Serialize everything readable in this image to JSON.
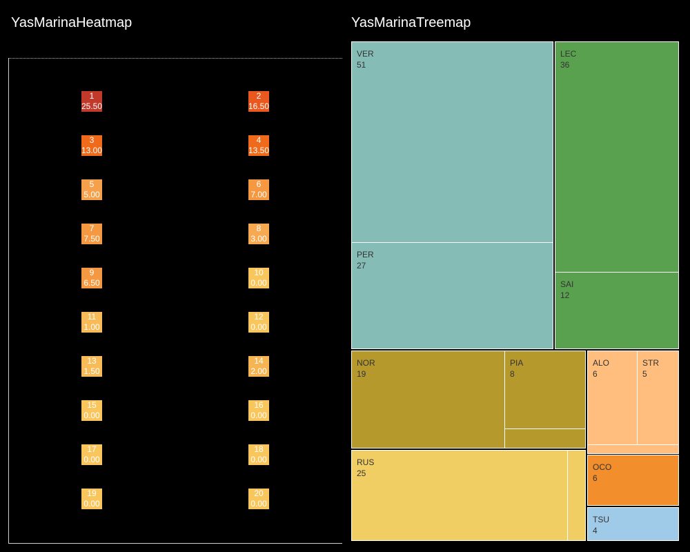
{
  "titles": {
    "heatmap": "YasMarinaHeatmap",
    "treemap": "YasMarinaTreemap"
  },
  "chart_data": [
    {
      "type": "heatmap",
      "title": "YasMarinaHeatmap",
      "cells": [
        {
          "pos": "1",
          "val": "25.50",
          "color": "#c0392b"
        },
        {
          "pos": "2",
          "val": "16.50",
          "color": "#e9581f"
        },
        {
          "pos": "3",
          "val": "13.00",
          "color": "#ef6a1a"
        },
        {
          "pos": "4",
          "val": "13.50",
          "color": "#ef6a1a"
        },
        {
          "pos": "5",
          "val": "5.00",
          "color": "#f5a04a"
        },
        {
          "pos": "6",
          "val": "7.00",
          "color": "#f49841"
        },
        {
          "pos": "7",
          "val": "7.50",
          "color": "#f49841"
        },
        {
          "pos": "8",
          "val": "3.00",
          "color": "#f6a950"
        },
        {
          "pos": "9",
          "val": "6.50",
          "color": "#f49841"
        },
        {
          "pos": "10",
          "val": "0.00",
          "color": "#f8c65c"
        },
        {
          "pos": "11",
          "val": "1.00",
          "color": "#f7bb57"
        },
        {
          "pos": "12",
          "val": "0.00",
          "color": "#f8c65c"
        },
        {
          "pos": "13",
          "val": "1.50",
          "color": "#f7bb57"
        },
        {
          "pos": "14",
          "val": "2.00",
          "color": "#f6b553"
        },
        {
          "pos": "15",
          "val": "0.00",
          "color": "#f8c65c"
        },
        {
          "pos": "16",
          "val": "0.00",
          "color": "#f8c65c"
        },
        {
          "pos": "17",
          "val": "0.00",
          "color": "#f8c65c"
        },
        {
          "pos": "18",
          "val": "0.00",
          "color": "#f8c65c"
        },
        {
          "pos": "19",
          "val": "0.00",
          "color": "#f8c65c"
        },
        {
          "pos": "20",
          "val": "0.00",
          "color": "#f8c65c"
        }
      ]
    },
    {
      "type": "treemap",
      "title": "YasMarinaTreemap",
      "groups": [
        {
          "color": "#86bcb6",
          "items": [
            {
              "label": "VER",
              "value": 51
            },
            {
              "label": "PER",
              "value": 27
            }
          ]
        },
        {
          "color": "#59a14f",
          "items": [
            {
              "label": "LEC",
              "value": 36
            },
            {
              "label": "SAI",
              "value": 12
            }
          ]
        },
        {
          "color": "#b6992d",
          "items": [
            {
              "label": "NOR",
              "value": 19
            },
            {
              "label": "PIA",
              "value": 8
            },
            {
              "label": "",
              "value": null
            }
          ]
        },
        {
          "color": "#f1ce63",
          "items": [
            {
              "label": "RUS",
              "value": 25
            },
            {
              "label": "",
              "value": null
            }
          ]
        },
        {
          "color": "#ffbe7d",
          "items": [
            {
              "label": "ALO",
              "value": 6
            },
            {
              "label": "STR",
              "value": 5
            },
            {
              "label": "",
              "value": null
            }
          ]
        },
        {
          "color": "#f28e2b",
          "items": [
            {
              "label": "OCO",
              "value": 6
            }
          ]
        },
        {
          "color": "#a0cbe8",
          "items": [
            {
              "label": "TSU",
              "value": 4
            }
          ]
        }
      ]
    }
  ]
}
